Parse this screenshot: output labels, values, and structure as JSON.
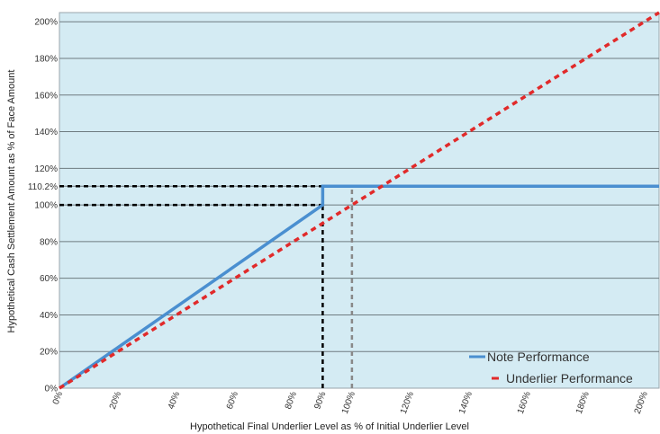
{
  "chart_data": {
    "type": "line",
    "title": "",
    "xlabel": "Hypothetical Final Underlier Level as % of Initial Underlier Level",
    "ylabel": "Hypothetical Cash Settlement Amount as % of Face Amount",
    "xlim": [
      0,
      205
    ],
    "ylim": [
      0,
      205
    ],
    "x_ticks": [
      0,
      20,
      40,
      60,
      80,
      90,
      100,
      120,
      140,
      160,
      180,
      200
    ],
    "x_tick_labels": [
      "0%",
      "20%",
      "40%",
      "60%",
      "80%",
      "90%",
      "100%",
      "120%",
      "140%",
      "160%",
      "180%",
      "200%"
    ],
    "y_ticks": [
      0,
      20,
      40,
      60,
      80,
      100,
      110.2,
      120,
      140,
      160,
      180,
      200
    ],
    "y_tick_labels": [
      "0%",
      "20%",
      "40%",
      "60%",
      "80%",
      "100%",
      "110.2%",
      "120%",
      "140%",
      "160%",
      "180%",
      "200%"
    ],
    "grid": true,
    "legend_position": "bottom-right",
    "plot_background": "#d4ebf3",
    "series": [
      {
        "name": "Note Performance",
        "color": "#4a8fd0",
        "style": "solid",
        "points": [
          [
            0,
            0
          ],
          [
            90,
            100
          ],
          [
            90,
            110.2
          ],
          [
            205,
            110.2
          ]
        ]
      },
      {
        "name": "Underlier Performance",
        "color": "#e12a2a",
        "style": "dashed",
        "points": [
          [
            0,
            0
          ],
          [
            205,
            205
          ]
        ]
      }
    ],
    "reference_lines": [
      {
        "color": "#000000",
        "style": "dashed",
        "points": [
          [
            0,
            110.2
          ],
          [
            90,
            110.2
          ]
        ]
      },
      {
        "color": "#000000",
        "style": "dashed",
        "points": [
          [
            0,
            100
          ],
          [
            90,
            100
          ]
        ]
      },
      {
        "color": "#000000",
        "style": "dashed",
        "points": [
          [
            90,
            0
          ],
          [
            90,
            100
          ]
        ]
      },
      {
        "color": "#888888",
        "style": "dashed",
        "points": [
          [
            100,
            0
          ],
          [
            100,
            110.2
          ]
        ]
      }
    ]
  }
}
